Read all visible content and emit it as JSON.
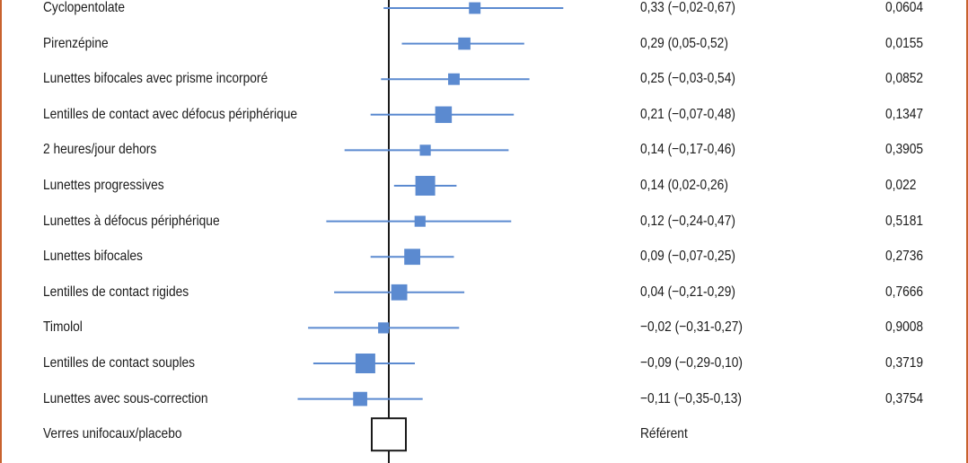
{
  "chart_data": {
    "type": "forest",
    "xlim": [
      -0.45,
      0.45
    ],
    "reference_line": 0,
    "colors": {
      "marker": "#5b8ad0",
      "axis": "#1a1a1a",
      "border": "#c8622e"
    },
    "rows": [
      {
        "label": "Cyclopentolate",
        "estimate": 0.33,
        "low": -0.02,
        "high": 0.67,
        "ci_text": "0,33 (−0,02-0,67)",
        "p": "0,0604",
        "weight": 0.35
      },
      {
        "label": "Pirenzépine",
        "estimate": 0.29,
        "low": 0.05,
        "high": 0.52,
        "ci_text": "0,29 (0,05-0,52)",
        "p": "0,0155",
        "weight": 0.4
      },
      {
        "label": "Lunettes bifocales avec prisme incorporé",
        "estimate": 0.25,
        "low": -0.03,
        "high": 0.54,
        "ci_text": "0,25 (−0,03-0,54)",
        "p": "0,0852",
        "weight": 0.35
      },
      {
        "label": "Lentilles de contact avec défocus périphérique",
        "estimate": 0.21,
        "low": -0.07,
        "high": 0.48,
        "ci_text": "0,21 (−0,07-0,48)",
        "p": "0,1347",
        "weight": 0.75
      },
      {
        "label": "2 heures/jour dehors",
        "estimate": 0.14,
        "low": -0.17,
        "high": 0.46,
        "ci_text": "0,14 (−0,17-0,46)",
        "p": "0,3905",
        "weight": 0.3
      },
      {
        "label": "Lunettes progressives",
        "estimate": 0.14,
        "low": 0.02,
        "high": 0.26,
        "ci_text": "0,14 (0,02-0,26)",
        "p": "0,022",
        "weight": 1.0
      },
      {
        "label": "Lunettes à défocus périphérique",
        "estimate": 0.12,
        "low": -0.24,
        "high": 0.47,
        "ci_text": "0,12 (−0,24-0,47)",
        "p": "0,5181",
        "weight": 0.3
      },
      {
        "label": "Lunettes bifocales",
        "estimate": 0.09,
        "low": -0.07,
        "high": 0.25,
        "ci_text": "0,09 (−0,07-0,25)",
        "p": "0,2736",
        "weight": 0.7
      },
      {
        "label": "Lentilles de contact rigides",
        "estimate": 0.04,
        "low": -0.21,
        "high": 0.29,
        "ci_text": "0,04 (−0,21-0,29)",
        "p": "0,7666",
        "weight": 0.7
      },
      {
        "label": "Timolol",
        "estimate": -0.02,
        "low": -0.31,
        "high": 0.27,
        "ci_text": "−0,02 (−0,31-0,27)",
        "p": "0,9008",
        "weight": 0.3
      },
      {
        "label": "Lentilles de contact souples",
        "estimate": -0.09,
        "low": -0.29,
        "high": 0.1,
        "ci_text": "−0,09 (−0,29-0,10)",
        "p": "0,3719",
        "weight": 1.0
      },
      {
        "label": "Lunettes avec sous-correction",
        "estimate": -0.11,
        "low": -0.35,
        "high": 0.13,
        "ci_text": "−0,11 (−0,35-0,13)",
        "p": "0,3754",
        "weight": 0.55
      },
      {
        "label": "Verres unifocaux/placebo",
        "estimate": null,
        "low": null,
        "high": null,
        "ci_text": "Référent",
        "p": "",
        "weight": null,
        "is_reference": true
      }
    ]
  }
}
